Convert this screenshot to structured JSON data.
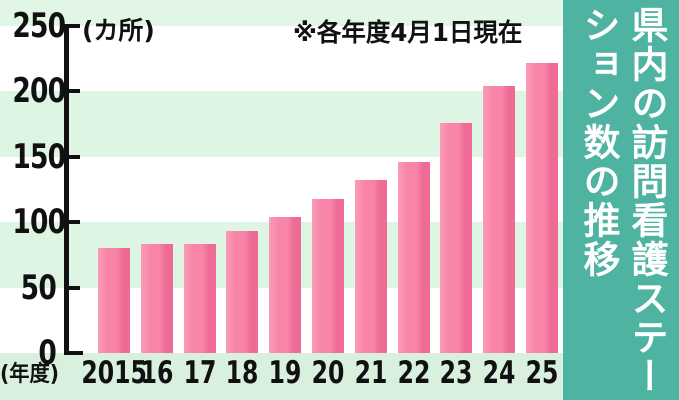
{
  "chart_data": {
    "type": "bar",
    "title": "県内の訪問看護ステーション数の推移",
    "title_lines": [
      "県内の訪問看護ステー",
      "ション数の推移"
    ],
    "unit_label": "(カ所)",
    "note": "※各年度4月1日現在",
    "xlabel": "(年度)",
    "categories": [
      "2015",
      "16",
      "17",
      "18",
      "19",
      "20",
      "21",
      "22",
      "23",
      "24",
      "25"
    ],
    "values": [
      80,
      83,
      83,
      93,
      104,
      118,
      132,
      146,
      176,
      204,
      222
    ],
    "y_ticks": [
      0,
      50,
      100,
      150,
      200,
      250
    ],
    "ylim": [
      0,
      250
    ],
    "grid": "horizontal-bands",
    "legend": "none",
    "colors": {
      "bar_light": "#fb9db7",
      "bar_mid": "#f884a7",
      "bar_dark": "#ee6b95",
      "band_green": "#dff5e3",
      "band_white": "#ffffff",
      "panel_teal": "#4eb3a0",
      "text": "#111111",
      "title_text": "#ffffff"
    }
  }
}
